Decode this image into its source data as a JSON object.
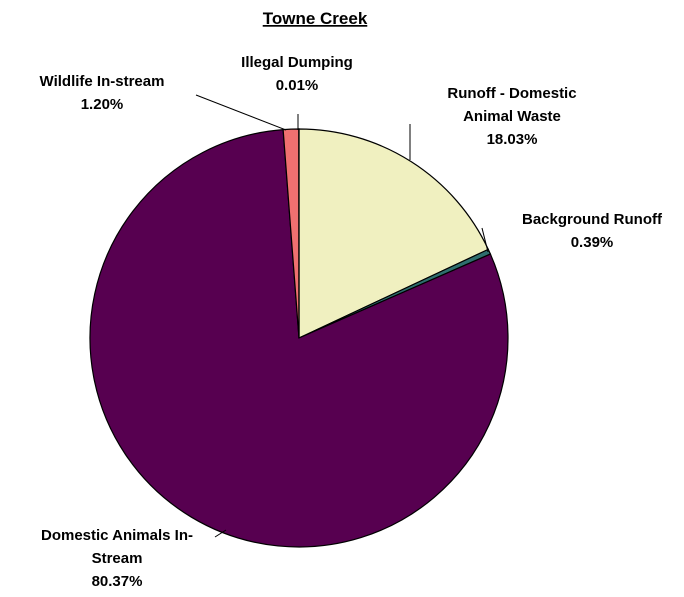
{
  "chart_data": {
    "type": "pie",
    "title": "Towne Creek",
    "slices": [
      {
        "label_lines": [
          "Runoff - Domestic",
          "Animal Waste"
        ],
        "value": 18.03,
        "value_label": "18.03%",
        "color": "#f0f0c0"
      },
      {
        "label_lines": [
          "Background Runoff"
        ],
        "value": 0.39,
        "value_label": "0.39%",
        "color": "#2e6e6e"
      },
      {
        "label_lines": [
          "Domestic Animals In-",
          "Stream"
        ],
        "value": 80.37,
        "value_label": "80.37%",
        "color": "#570050"
      },
      {
        "label_lines": [
          "Wildlife In-stream"
        ],
        "value": 1.2,
        "value_label": "1.20%",
        "color": "#f07070"
      },
      {
        "label_lines": [
          "Illegal Dumping"
        ],
        "value": 0.01,
        "value_label": "0.01%",
        "color": "#b0b0e0"
      }
    ],
    "start_angle": "12 o'clock",
    "direction": "clockwise",
    "legend": "none"
  }
}
